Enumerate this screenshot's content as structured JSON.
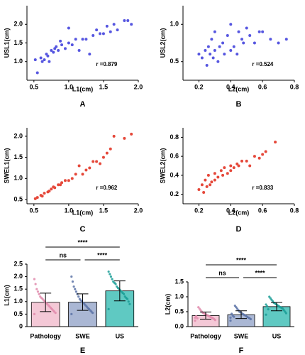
{
  "chart_data": [
    {
      "type": "scatter",
      "panel_label": "A",
      "xlabel": "L1(cm)",
      "ylabel": "USL1(cm)",
      "annotation": "r =0.879",
      "color": "#5656e0",
      "xlim": [
        0.4,
        2.0
      ],
      "ylim": [
        0.5,
        2.5
      ],
      "xticks": [
        0.5,
        {
          "value": 1,
          "label": "1.0"
        },
        1.5,
        {
          "value": 2,
          "label": "2.0"
        }
      ],
      "yticks": [
        {
          "value": 1,
          "label": "1.0"
        },
        1.5,
        {
          "value": 2,
          "label": "2.0"
        }
      ],
      "x": [
        0.52,
        0.55,
        0.6,
        0.62,
        0.65,
        0.68,
        0.7,
        0.72,
        0.75,
        0.78,
        0.8,
        0.82,
        0.85,
        0.88,
        0.9,
        0.95,
        1.0,
        1.0,
        1.05,
        1.1,
        1.15,
        1.2,
        1.25,
        1.3,
        1.35,
        1.4,
        1.45,
        1.5,
        1.55,
        1.6,
        1.65,
        1.7,
        1.8,
        1.85,
        1.9
      ],
      "y": [
        1.05,
        0.7,
        1.1,
        1.0,
        1.05,
        1.2,
        1.15,
        1.0,
        1.3,
        1.25,
        1.35,
        1.4,
        1.3,
        1.55,
        1.45,
        1.35,
        1.5,
        1.9,
        1.45,
        1.6,
        1.3,
        1.6,
        1.6,
        1.2,
        1.7,
        1.85,
        1.75,
        1.75,
        1.95,
        1.8,
        2.0,
        1.85,
        2.1,
        2.1,
        2.0
      ]
    },
    {
      "type": "scatter",
      "panel_label": "B",
      "xlabel": "L2(cm)",
      "ylabel": "USL2(cm)",
      "annotation": "r =0.524",
      "color": "#5656e0",
      "xlim": [
        0.1,
        0.8
      ],
      "ylim": [
        0.25,
        1.25
      ],
      "xticks": [
        0.2,
        0.4,
        0.6,
        0.8
      ],
      "yticks": [
        0.5,
        {
          "value": 1,
          "label": "1.0"
        }
      ],
      "x": [
        0.2,
        0.22,
        0.24,
        0.25,
        0.26,
        0.27,
        0.28,
        0.29,
        0.3,
        0.3,
        0.32,
        0.33,
        0.35,
        0.36,
        0.38,
        0.4,
        0.4,
        0.42,
        0.44,
        0.45,
        0.47,
        0.48,
        0.5,
        0.52,
        0.55,
        0.58,
        0.6,
        0.65,
        0.7,
        0.75
      ],
      "y": [
        0.6,
        0.55,
        0.65,
        0.45,
        0.7,
        0.6,
        0.8,
        0.55,
        0.65,
        0.9,
        0.5,
        0.7,
        0.75,
        0.6,
        0.85,
        0.65,
        1.0,
        0.7,
        0.6,
        0.9,
        0.8,
        0.75,
        0.95,
        0.85,
        0.75,
        0.9,
        0.9,
        0.8,
        0.75,
        0.8
      ]
    },
    {
      "type": "scatter",
      "panel_label": "C",
      "xlabel": "L1(cm)",
      "ylabel": "SWEL1(cm)",
      "annotation": "r =0.962",
      "color": "#e5483a",
      "xlim": [
        0.4,
        2.0
      ],
      "ylim": [
        0.4,
        2.2
      ],
      "xticks": [
        0.5,
        {
          "value": 1,
          "label": "1.0"
        },
        1.5,
        {
          "value": 2,
          "label": "2.0"
        }
      ],
      "yticks": [
        0.5,
        {
          "value": 1,
          "label": "1.0"
        },
        1.5,
        {
          "value": 2,
          "label": "2.0"
        }
      ],
      "x": [
        0.52,
        0.55,
        0.6,
        0.62,
        0.65,
        0.7,
        0.72,
        0.75,
        0.78,
        0.8,
        0.85,
        0.88,
        0.9,
        0.95,
        1.0,
        1.05,
        1.1,
        1.15,
        1.2,
        1.25,
        1.3,
        1.35,
        1.4,
        1.45,
        1.5,
        1.55,
        1.6,
        1.65,
        1.8,
        1.9
      ],
      "y": [
        0.52,
        0.55,
        0.6,
        0.58,
        0.65,
        0.68,
        0.7,
        0.75,
        0.8,
        0.78,
        0.85,
        0.85,
        0.9,
        0.95,
        0.95,
        1.0,
        1.1,
        1.3,
        1.1,
        1.2,
        1.25,
        1.4,
        1.4,
        1.35,
        1.5,
        1.6,
        1.7,
        2.0,
        1.95,
        2.05
      ]
    },
    {
      "type": "scatter",
      "panel_label": "D",
      "xlabel": "L2(cm)",
      "ylabel": "SWEL2(cm)",
      "annotation": "r =0.833",
      "color": "#e5483a",
      "xlim": [
        0.1,
        0.8
      ],
      "ylim": [
        0.1,
        0.9
      ],
      "xticks": [
        0.2,
        0.4,
        0.6,
        0.8
      ],
      "yticks": [
        0.2,
        0.4,
        0.6,
        0.8
      ],
      "x": [
        0.2,
        0.22,
        0.23,
        0.24,
        0.25,
        0.26,
        0.27,
        0.28,
        0.3,
        0.3,
        0.32,
        0.34,
        0.35,
        0.36,
        0.38,
        0.4,
        0.4,
        0.42,
        0.44,
        0.45,
        0.47,
        0.5,
        0.52,
        0.55,
        0.58,
        0.6,
        0.62,
        0.68
      ],
      "y": [
        0.25,
        0.3,
        0.22,
        0.35,
        0.28,
        0.4,
        0.3,
        0.33,
        0.35,
        0.42,
        0.38,
        0.45,
        0.4,
        0.48,
        0.42,
        0.45,
        0.5,
        0.48,
        0.52,
        0.5,
        0.55,
        0.55,
        0.5,
        0.6,
        0.58,
        0.62,
        0.65,
        0.75
      ]
    },
    {
      "type": "bar",
      "panel_label": "E",
      "ylabel": "L1(cm)",
      "categories": [
        "Pathology",
        "SWE",
        "US"
      ],
      "values": [
        0.97,
        0.98,
        1.43
      ],
      "errors": [
        0.37,
        0.33,
        0.4
      ],
      "colors": [
        "#f4c8d6",
        "#aab7d4",
        "#5fc9c2"
      ],
      "point_colors": [
        "#e08aab",
        "#5a72a6",
        "#1a9e96"
      ],
      "comparisons": [
        "ns",
        "****",
        "****"
      ],
      "ylim": [
        0,
        2.5
      ],
      "yticks": [
        0,
        0.5,
        {
          "value": 1,
          "label": "1.0"
        },
        1.5,
        {
          "value": 2,
          "label": "2.0"
        },
        2.5
      ],
      "points": [
        [
          0.5,
          0.55,
          0.6,
          0.65,
          0.7,
          0.75,
          0.8,
          0.85,
          0.9,
          0.95,
          1.0,
          1.05,
          1.1,
          1.15,
          1.2,
          1.3,
          1.4,
          1.5,
          1.7,
          1.9
        ],
        [
          0.5,
          0.55,
          0.6,
          0.65,
          0.7,
          0.75,
          0.8,
          0.85,
          0.9,
          0.95,
          1.0,
          1.05,
          1.1,
          1.2,
          1.3,
          1.4,
          1.5,
          1.6,
          1.8,
          2.0
        ],
        [
          0.7,
          0.9,
          1.0,
          1.1,
          1.15,
          1.2,
          1.3,
          1.35,
          1.4,
          1.45,
          1.5,
          1.55,
          1.6,
          1.7,
          1.75,
          1.8,
          1.9,
          2.0,
          2.1,
          2.2
        ]
      ]
    },
    {
      "type": "bar",
      "panel_label": "F",
      "ylabel": "L2(cm)",
      "categories": [
        "Pathology",
        "SWE",
        "US"
      ],
      "values": [
        0.37,
        0.4,
        0.67
      ],
      "errors": [
        0.12,
        0.13,
        0.14
      ],
      "colors": [
        "#f4c8d6",
        "#aab7d4",
        "#5fc9c2"
      ],
      "point_colors": [
        "#e08aab",
        "#5a72a6",
        "#1a9e96"
      ],
      "comparisons": [
        "ns",
        "****",
        "****"
      ],
      "ylim": [
        0,
        1.5
      ],
      "yticks": [
        {
          "value": 0,
          "label": "0.0"
        },
        0.5,
        {
          "value": 1,
          "label": "1.0"
        },
        1.5
      ],
      "points": [
        [
          0.2,
          0.22,
          0.25,
          0.28,
          0.3,
          0.32,
          0.34,
          0.36,
          0.38,
          0.4,
          0.42,
          0.44,
          0.46,
          0.5,
          0.55,
          0.6,
          0.65,
          0.28,
          0.35,
          0.3
        ],
        [
          0.2,
          0.25,
          0.28,
          0.3,
          0.32,
          0.35,
          0.38,
          0.4,
          0.42,
          0.45,
          0.48,
          0.5,
          0.55,
          0.6,
          0.65,
          0.7,
          0.33,
          0.37,
          0.43,
          0.3
        ],
        [
          0.4,
          0.45,
          0.5,
          0.55,
          0.6,
          0.62,
          0.65,
          0.67,
          0.7,
          0.72,
          0.75,
          0.78,
          0.8,
          0.85,
          0.9,
          0.95,
          1.0,
          0.58,
          0.68,
          0.74
        ]
      ]
    }
  ]
}
